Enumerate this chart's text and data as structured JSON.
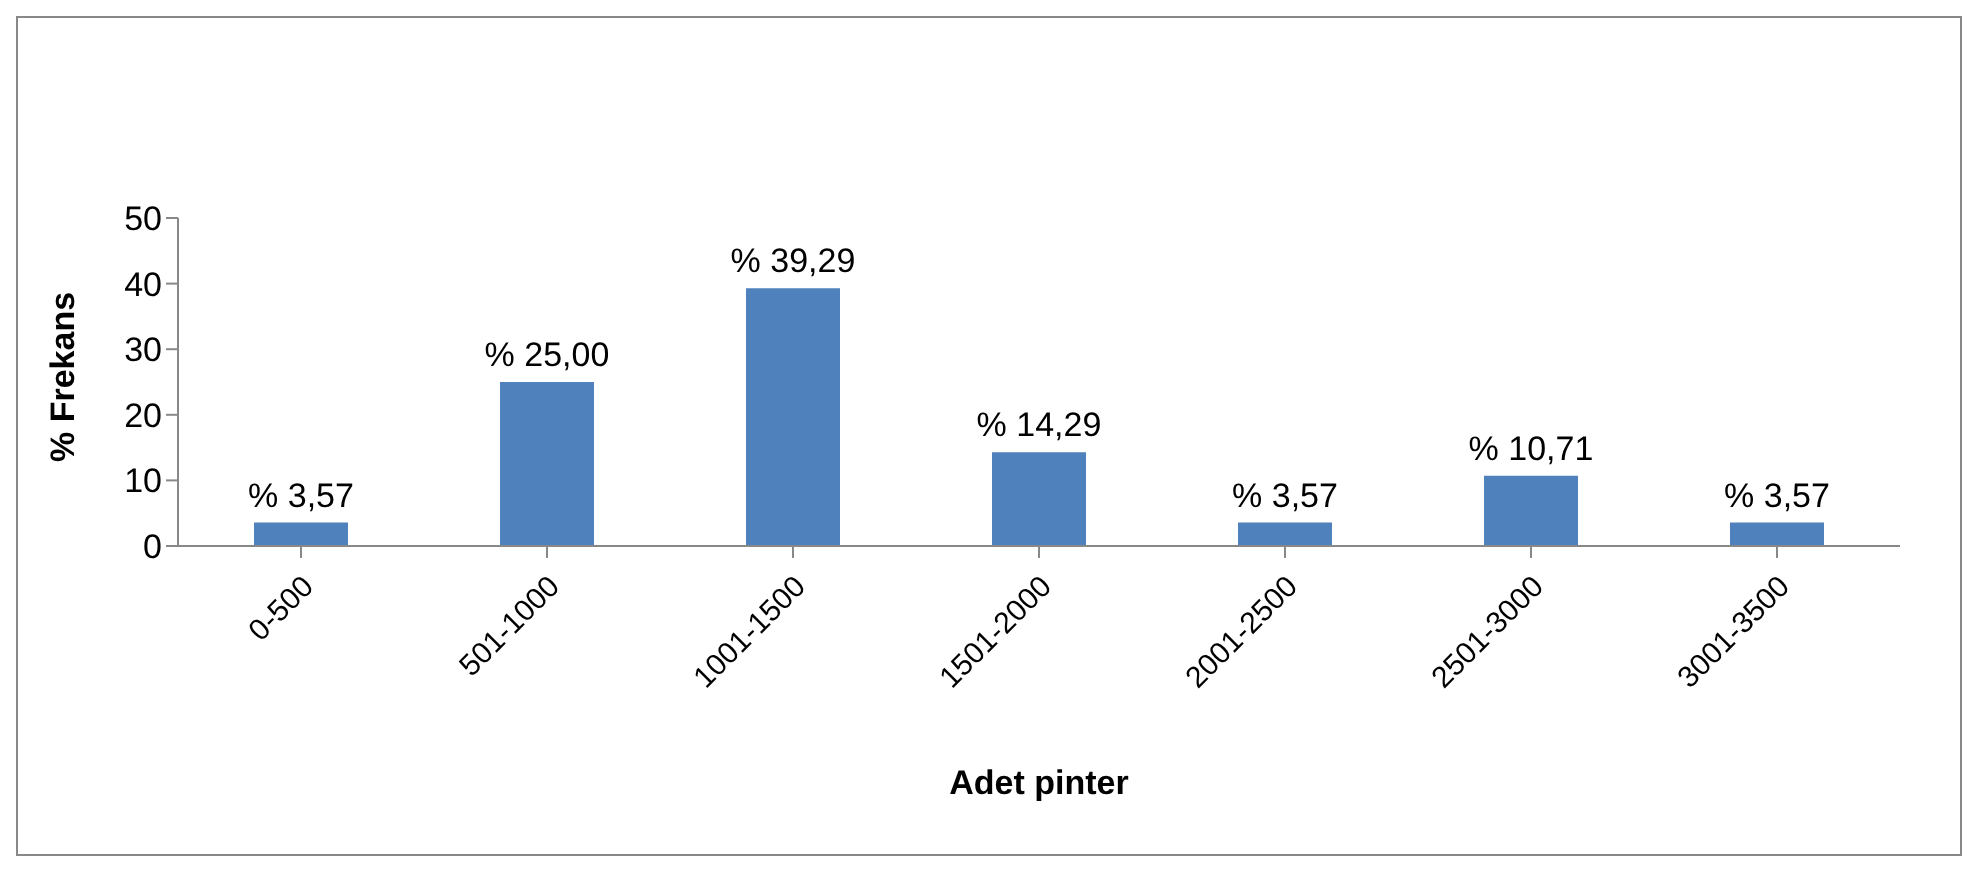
{
  "chart_data": {
    "type": "bar",
    "xlabel": "Adet pinter",
    "ylabel": "% Frekans",
    "categories": [
      "0-500",
      "501-1000",
      "1001-1500",
      "1501-2000",
      "2001-2500",
      "2501-3000",
      "3001-3500"
    ],
    "values": [
      3.57,
      25.0,
      39.29,
      14.29,
      3.57,
      10.71,
      3.57
    ],
    "value_labels": [
      "% 3,57",
      "% 25,00",
      "% 39,29",
      "% 14,29",
      "% 3,57",
      "% 10,71",
      "% 3,57"
    ],
    "color": "#4f81bd",
    "ylim": [
      0,
      50
    ],
    "yticks": [
      0,
      10,
      20,
      30,
      40,
      50
    ],
    "grid": false,
    "legend": false
  }
}
